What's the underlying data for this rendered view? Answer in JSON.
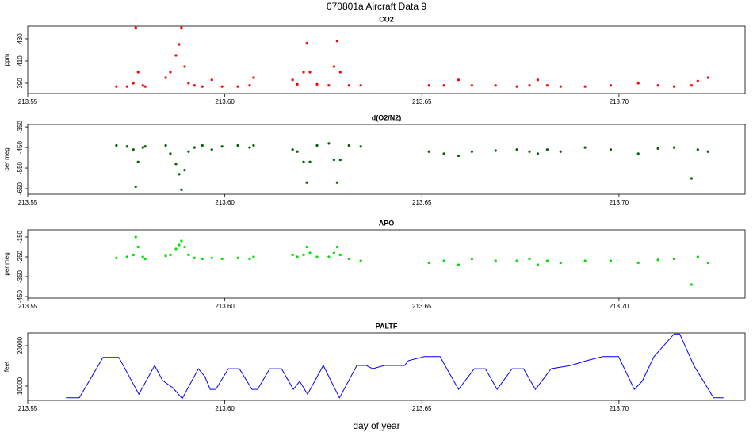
{
  "title": "070801a   Aircraft Data 9",
  "xlabel": "day of year",
  "chart_data": [
    {
      "type": "scatter",
      "title": "CO2",
      "ylabel": "ppm",
      "color": "#ff0000",
      "x": [
        213.5725,
        213.5752,
        213.5768,
        213.5774,
        213.578,
        213.5792,
        213.5798,
        213.585,
        213.5862,
        213.5876,
        213.5884,
        213.589,
        213.5898,
        213.5908,
        213.5923,
        213.5943,
        213.5967,
        213.5993,
        213.6033,
        213.6063,
        213.6073,
        213.6172,
        213.6184,
        213.62,
        213.6208,
        213.6216,
        213.6234,
        213.6264,
        213.6277,
        213.6285,
        213.6293,
        213.6315,
        213.6345,
        213.6518,
        213.6556,
        213.6593,
        213.6627,
        213.6687,
        213.6741,
        213.6773,
        213.6794,
        213.6818,
        213.6852,
        213.6914,
        213.6979,
        213.7049,
        213.7099,
        213.714,
        213.7184,
        213.72,
        213.7226
      ],
      "values": [
        387,
        387,
        390,
        440,
        400,
        388,
        387,
        395,
        400,
        415,
        425,
        440,
        405,
        390,
        388,
        387,
        393,
        387,
        387,
        388,
        395,
        393,
        389,
        400,
        426,
        400,
        389,
        388,
        405,
        428,
        400,
        388,
        388,
        388,
        388,
        393,
        388,
        388,
        387,
        388,
        393,
        388,
        387,
        387,
        388,
        390,
        388,
        387,
        388,
        392,
        395
      ],
      "xlim": [
        213.55,
        213.732
      ],
      "xticks": [
        213.55,
        {
          "value": 213.6,
          "label": "213.60"
        },
        213.65,
        {
          "value": 213.7,
          "label": "213.70"
        }
      ],
      "ylim": [
        380.7,
        441.4
      ],
      "yticks": [
        390,
        410,
        430
      ]
    },
    {
      "type": "scatter",
      "title": "d(O2/N2)",
      "ylabel": "per meg",
      "color": "#006400",
      "x": [
        213.5725,
        213.5752,
        213.5768,
        213.5774,
        213.578,
        213.5792,
        213.5798,
        213.585,
        213.5862,
        213.5876,
        213.5884,
        213.589,
        213.5898,
        213.5908,
        213.5923,
        213.5943,
        213.5967,
        213.5993,
        213.6033,
        213.6063,
        213.6073,
        213.6172,
        213.6184,
        213.62,
        213.6208,
        213.6216,
        213.6234,
        213.6264,
        213.6277,
        213.6285,
        213.6293,
        213.6315,
        213.6345,
        213.6518,
        213.6556,
        213.6593,
        213.6627,
        213.6687,
        213.6741,
        213.6773,
        213.6794,
        213.6818,
        213.6852,
        213.6914,
        213.6979,
        213.7049,
        213.7099,
        213.714,
        213.7184,
        213.72,
        213.7226
      ],
      "values": [
        -440,
        -445,
        -460,
        -640,
        -520,
        -450,
        -445,
        -440,
        -480,
        -530,
        -580,
        -655,
        -560,
        -470,
        -450,
        -440,
        -460,
        -445,
        -440,
        -450,
        -440,
        -460,
        -470,
        -520,
        -620,
        -520,
        -440,
        -430,
        -510,
        -620,
        -510,
        -440,
        -445,
        -470,
        -480,
        -490,
        -470,
        -465,
        -460,
        -470,
        -480,
        -460,
        -470,
        -450,
        -460,
        -480,
        -455,
        -450,
        -600,
        -460,
        -470
      ],
      "xlim": [
        213.55,
        213.732
      ],
      "xticks": [
        213.55,
        {
          "value": 213.6,
          "label": "213.60"
        },
        213.65,
        {
          "value": 213.7,
          "label": "213.70"
        }
      ],
      "ylim": [
        -677,
        -338
      ],
      "yticks": [
        -650,
        -550,
        -450,
        -350
      ]
    },
    {
      "type": "scatter",
      "title": "APO",
      "ylabel": "per meg",
      "color": "#00e000",
      "x": [
        213.5725,
        213.5752,
        213.5768,
        213.5774,
        213.578,
        213.5792,
        213.5798,
        213.585,
        213.5862,
        213.5876,
        213.5884,
        213.589,
        213.5898,
        213.5908,
        213.5923,
        213.5943,
        213.5967,
        213.5993,
        213.6033,
        213.6063,
        213.6073,
        213.6172,
        213.6184,
        213.62,
        213.6208,
        213.6216,
        213.6234,
        213.6264,
        213.6277,
        213.6285,
        213.6293,
        213.6315,
        213.6345,
        213.6518,
        213.6556,
        213.6593,
        213.6627,
        213.6687,
        213.6741,
        213.6773,
        213.6794,
        213.6818,
        213.6852,
        213.6914,
        213.6979,
        213.7049,
        213.7099,
        213.714,
        213.7184,
        213.72,
        213.7226
      ],
      "values": [
        -255,
        -250,
        -240,
        -150,
        -200,
        -250,
        -260,
        -245,
        -240,
        -210,
        -190,
        -170,
        -200,
        -240,
        -255,
        -260,
        -255,
        -260,
        -255,
        -260,
        -250,
        -240,
        -250,
        -240,
        -200,
        -230,
        -250,
        -250,
        -230,
        -200,
        -240,
        -260,
        -270,
        -280,
        -270,
        -290,
        -260,
        -270,
        -270,
        -260,
        -290,
        -270,
        -280,
        -270,
        -270,
        -280,
        -265,
        -260,
        -390,
        -250,
        -280
      ],
      "xlim": [
        213.55,
        213.732
      ],
      "xticks": [
        213.55,
        {
          "value": 213.6,
          "label": "213.60"
        },
        213.65,
        {
          "value": 213.7,
          "label": "213.70"
        }
      ],
      "ylim": [
        -458,
        -114
      ],
      "yticks": [
        -450,
        -350,
        -250,
        -150
      ]
    },
    {
      "type": "line",
      "title": "PALTF",
      "ylabel": "feet",
      "color": "#0000ff",
      "x": [
        213.5597,
        213.5631,
        213.5691,
        213.5731,
        213.5782,
        213.5822,
        213.5842,
        213.5868,
        213.5892,
        213.5933,
        213.5949,
        213.5963,
        213.5977,
        213.6009,
        213.6037,
        213.6069,
        213.6083,
        213.6114,
        213.6144,
        213.6174,
        213.619,
        213.621,
        213.625,
        213.6291,
        213.6335,
        213.6359,
        213.6375,
        213.6405,
        213.6456,
        213.6466,
        213.6506,
        213.6546,
        213.6593,
        213.6633,
        213.6661,
        213.6691,
        213.6729,
        213.6758,
        213.6788,
        213.6828,
        213.6878,
        213.6918,
        213.6959,
        213.6999,
        213.7039,
        213.7059,
        213.7089,
        213.714,
        213.7154,
        213.719,
        213.724,
        213.7265
      ],
      "values": [
        7100,
        7100,
        17100,
        17100,
        8000,
        15100,
        11400,
        9600,
        6900,
        14300,
        12400,
        9200,
        9200,
        14300,
        14300,
        9200,
        9200,
        14300,
        14300,
        9200,
        11200,
        8000,
        15100,
        7100,
        15100,
        15100,
        14300,
        15100,
        15100,
        16300,
        17300,
        17300,
        9200,
        14300,
        14300,
        9200,
        14300,
        14300,
        9200,
        14300,
        15100,
        16300,
        17300,
        17300,
        9200,
        11200,
        17300,
        22900,
        22900,
        15100,
        7100,
        7100
      ],
      "xlim": [
        213.55,
        213.732
      ],
      "xticks": [
        213.55,
        {
          "value": 213.6,
          "label": "213.60"
        },
        213.65,
        {
          "value": 213.7,
          "label": "213.70"
        }
      ],
      "ylim": [
        6470,
        23140
      ],
      "yticks": [
        10000,
        20000
      ]
    }
  ]
}
